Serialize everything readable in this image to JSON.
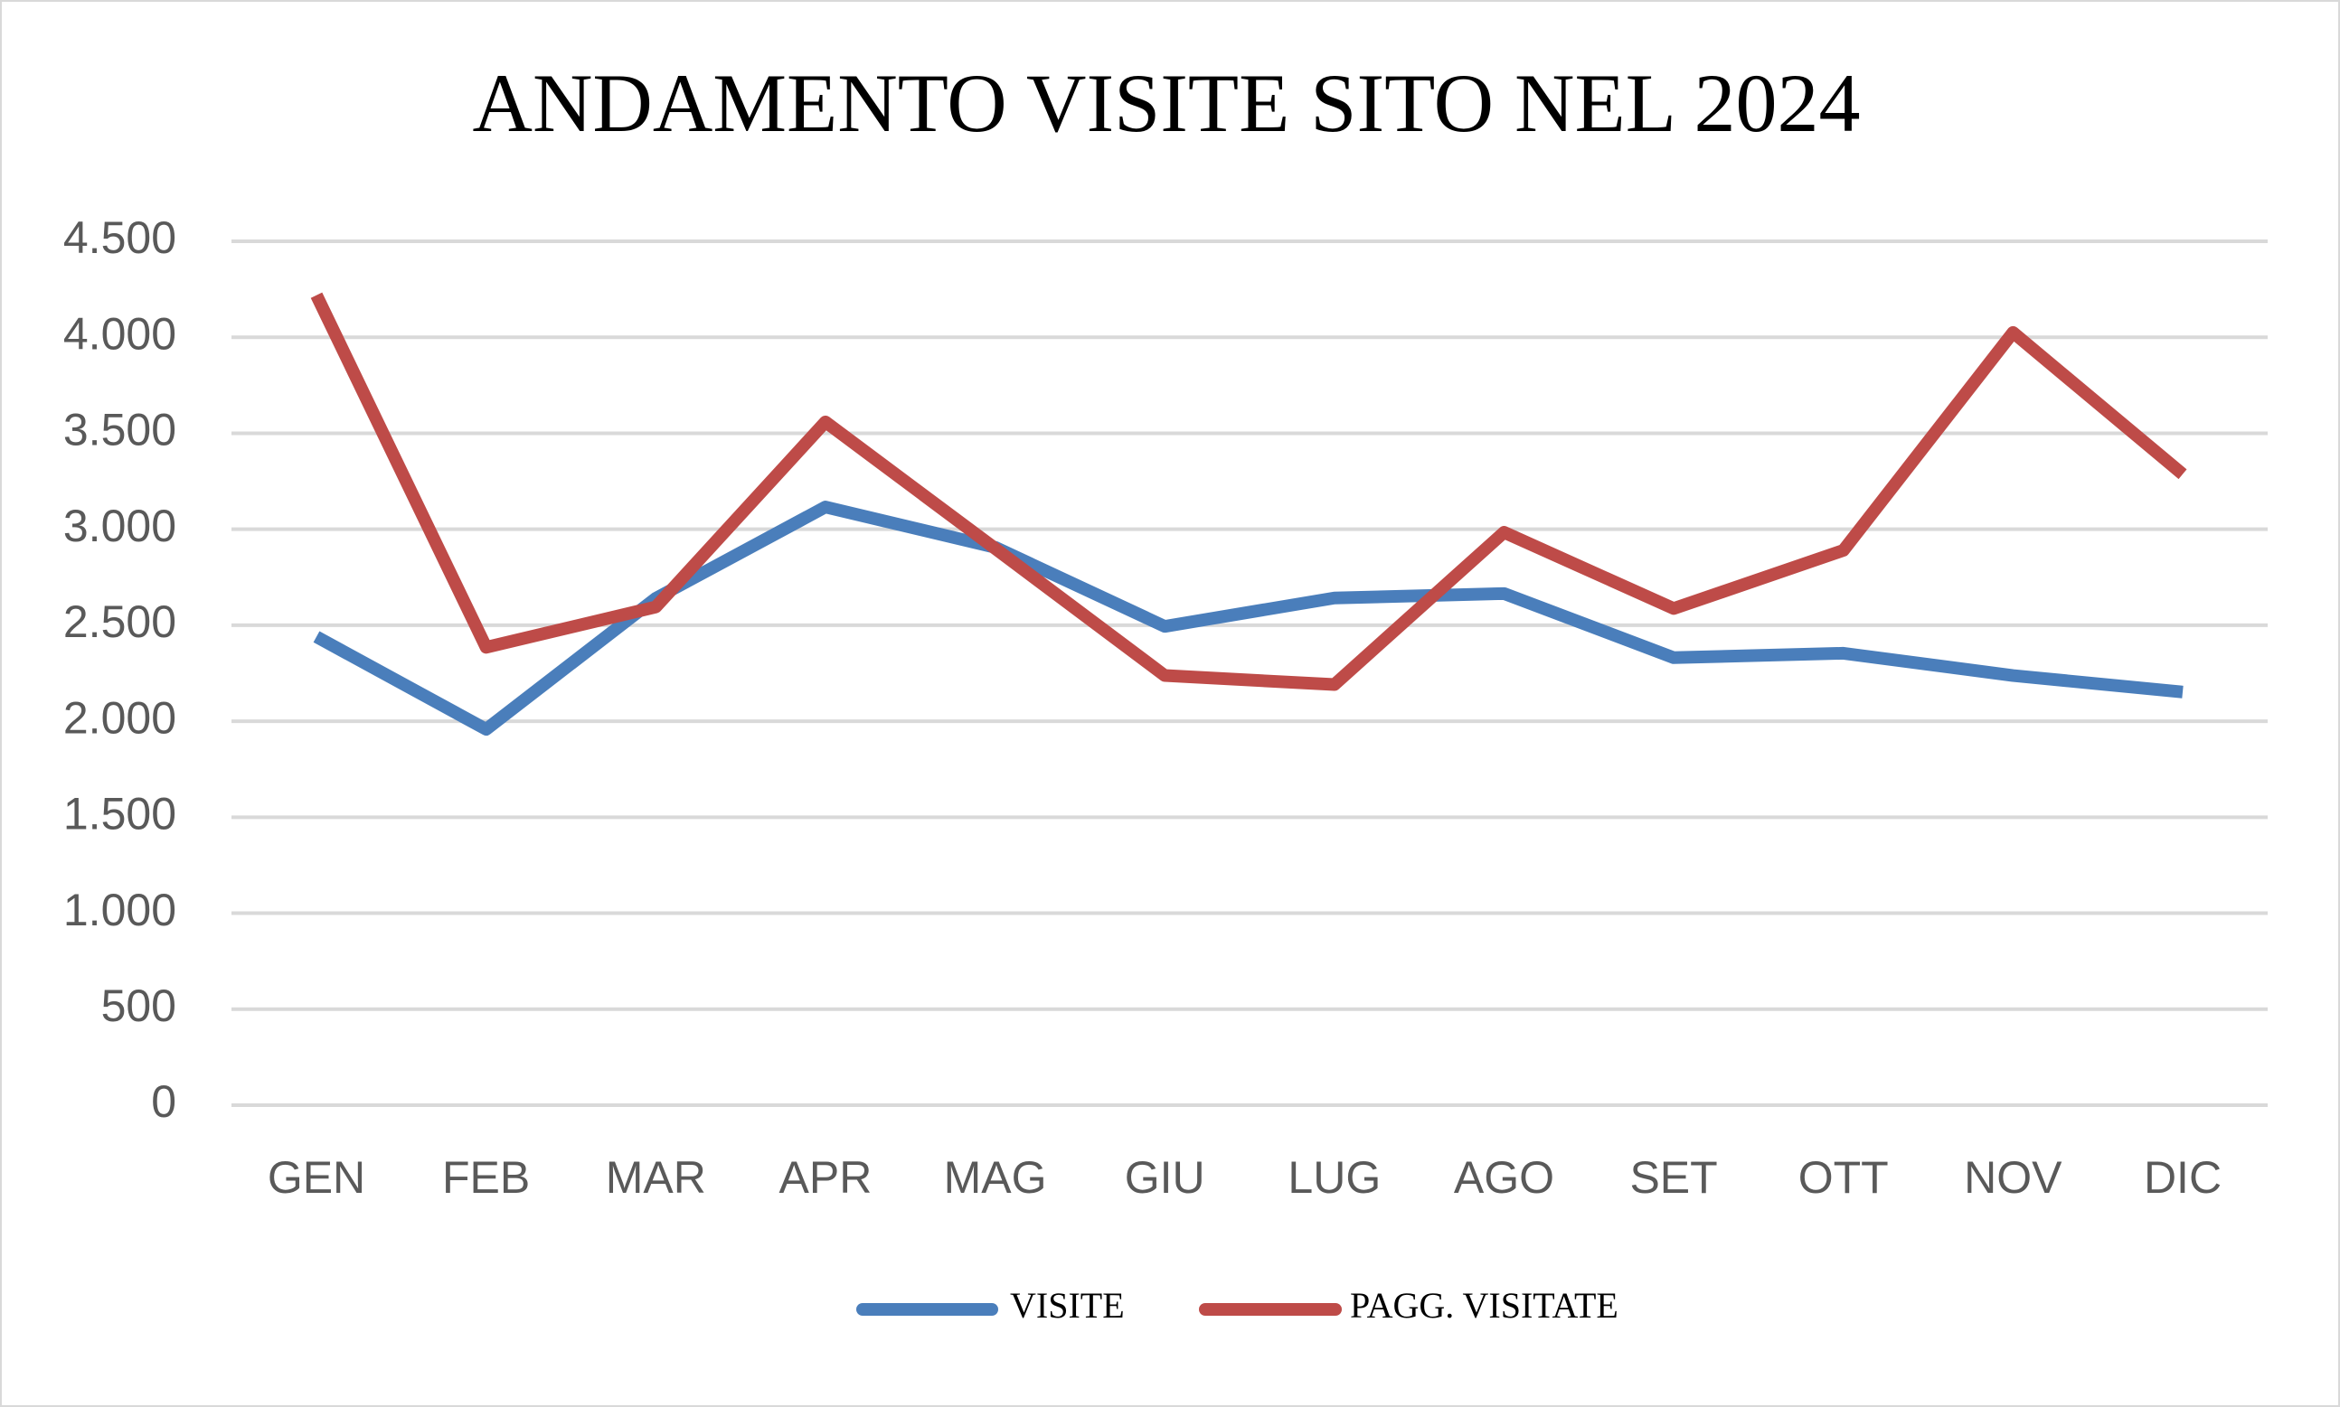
{
  "chart_data": {
    "type": "line",
    "title": "ANDAMENTO VISITE SITO NEL 2024",
    "categories": [
      "GEN",
      "FEB",
      "MAR",
      "APR",
      "MAG",
      "GIU",
      "LUG",
      "AGO",
      "SET",
      "OTT",
      "NOV",
      "DIC"
    ],
    "series": [
      {
        "name": "VISITE",
        "color": "#4a7ebb",
        "values": [
          2440,
          1958,
          2640,
          3116,
          2906,
          2494,
          2642,
          2665,
          2331,
          2354,
          2238,
          2152
        ]
      },
      {
        "name": "PAGG. VISITATE",
        "color": "#be4b48",
        "values": [
          4219,
          2385,
          2595,
          3559,
          2900,
          2238,
          2191,
          2984,
          2587,
          2890,
          4025,
          3287
        ]
      }
    ],
    "ylim": [
      0,
      4500
    ],
    "yticks": [
      0,
      500,
      {
        "value": 1000,
        "label": "1.000"
      },
      {
        "value": 1500,
        "label": "1.500"
      },
      {
        "value": 2000,
        "label": "2.000"
      },
      {
        "value": 2500,
        "label": "2.500"
      },
      {
        "value": 3000,
        "label": "3.000"
      },
      {
        "value": 3500,
        "label": "3.500"
      },
      {
        "value": 4000,
        "label": "4.000"
      },
      {
        "value": 4500,
        "label": "4.500"
      }
    ],
    "grid": true,
    "legend": "bottom"
  }
}
